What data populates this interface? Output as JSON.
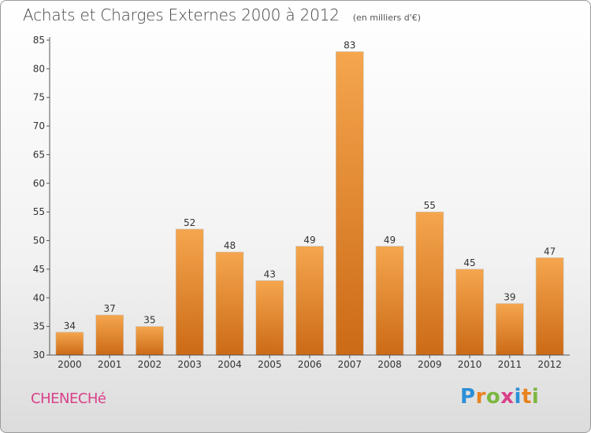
{
  "header": {
    "title": "Achats et Charges Externes 2000 à 2012",
    "unit": "(en milliers d'€)"
  },
  "footer": {
    "commune": "CHENECHé",
    "logo": "Proxiti"
  },
  "colors": {
    "bar_light": "#f5a64e",
    "bar_dark": "#cc6a16",
    "commune": "#d9408a",
    "axis": "#555555"
  },
  "chart_data": {
    "type": "bar",
    "title": "Achats et Charges Externes 2000 à 2012",
    "subtitle": "(en milliers d'€)",
    "xlabel": "",
    "ylabel": "",
    "categories": [
      "2000",
      "2001",
      "2002",
      "2003",
      "2004",
      "2005",
      "2006",
      "2007",
      "2008",
      "2009",
      "2010",
      "2011",
      "2012"
    ],
    "values": [
      34,
      37,
      35,
      52,
      48,
      43,
      49,
      83,
      49,
      55,
      45,
      39,
      47
    ],
    "ylim": [
      30,
      85
    ],
    "yticks": [
      30,
      35,
      40,
      45,
      50,
      55,
      60,
      65,
      70,
      75,
      80,
      85
    ],
    "grid": false,
    "legend": "none"
  }
}
